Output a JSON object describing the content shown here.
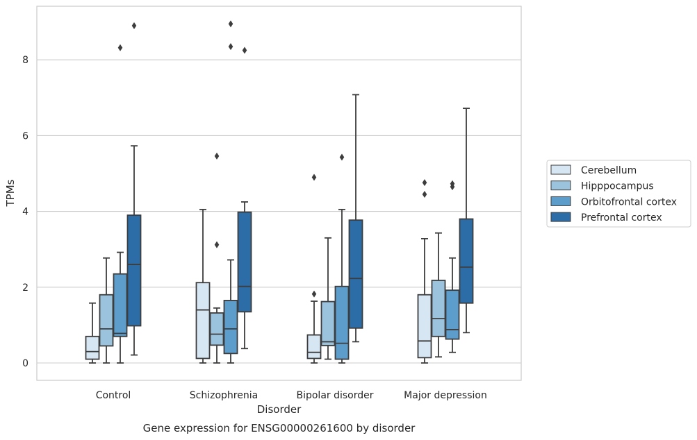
{
  "chart_data": {
    "type": "box",
    "caption": "Gene expression for ENSG00000261600 by disorder",
    "xlabel": "Disorder",
    "ylabel": "TPMs",
    "ylim": [
      -0.45,
      9.65
    ],
    "yticks": [
      0,
      2,
      4,
      6,
      8
    ],
    "grid": "horizontal",
    "legend_position": "outside-right",
    "categories": [
      "Control",
      "Schizophrenia",
      "Bipolar disorder",
      "Major depression"
    ],
    "series": [
      {
        "name": "Cerebellum",
        "color": "#d7e6f3",
        "boxes": [
          {
            "whisker_low": 0.0,
            "q1": 0.1,
            "median": 0.3,
            "q3": 0.7,
            "whisker_high": 1.58,
            "outliers": []
          },
          {
            "whisker_low": 0.0,
            "q1": 0.12,
            "median": 1.4,
            "q3": 2.12,
            "whisker_high": 4.05,
            "outliers": []
          },
          {
            "whisker_low": 0.0,
            "q1": 0.12,
            "median": 0.28,
            "q3": 0.74,
            "whisker_high": 1.63,
            "outliers": [
              1.82,
              4.9
            ]
          },
          {
            "whisker_low": 0.0,
            "q1": 0.14,
            "median": 0.58,
            "q3": 1.8,
            "whisker_high": 3.28,
            "outliers": [
              4.45,
              4.76
            ]
          }
        ]
      },
      {
        "name": "Hipppocampus",
        "color": "#9cc3dd",
        "boxes": [
          {
            "whisker_low": 0.0,
            "q1": 0.45,
            "median": 0.9,
            "q3": 1.8,
            "whisker_high": 2.77,
            "outliers": []
          },
          {
            "whisker_low": 0.0,
            "q1": 0.47,
            "median": 0.76,
            "q3": 1.32,
            "whisker_high": 1.45,
            "outliers": [
              3.12,
              5.46
            ]
          },
          {
            "whisker_low": 0.1,
            "q1": 0.46,
            "median": 0.56,
            "q3": 1.62,
            "whisker_high": 3.3,
            "outliers": []
          },
          {
            "whisker_low": 0.16,
            "q1": 0.7,
            "median": 1.17,
            "q3": 2.18,
            "whisker_high": 3.43,
            "outliers": []
          }
        ]
      },
      {
        "name": "Orbitofrontal cortex",
        "color": "#5c9dcb",
        "boxes": [
          {
            "whisker_low": 0.0,
            "q1": 0.7,
            "median": 0.78,
            "q3": 2.35,
            "whisker_high": 2.92,
            "outliers": [
              8.32
            ]
          },
          {
            "whisker_low": 0.0,
            "q1": 0.25,
            "median": 0.9,
            "q3": 1.65,
            "whisker_high": 2.72,
            "outliers": [
              8.35,
              8.95
            ]
          },
          {
            "whisker_low": 0.0,
            "q1": 0.1,
            "median": 0.52,
            "q3": 2.02,
            "whisker_high": 4.05,
            "outliers": [
              5.43
            ]
          },
          {
            "whisker_low": 0.28,
            "q1": 0.63,
            "median": 0.88,
            "q3": 1.92,
            "whisker_high": 2.77,
            "outliers": [
              4.65,
              4.73
            ]
          }
        ]
      },
      {
        "name": "Prefrontal cortex",
        "color": "#2c6da8",
        "boxes": [
          {
            "whisker_low": 0.21,
            "q1": 0.98,
            "median": 2.6,
            "q3": 3.9,
            "whisker_high": 5.73,
            "outliers": [
              8.9
            ]
          },
          {
            "whisker_low": 0.38,
            "q1": 1.35,
            "median": 2.02,
            "q3": 3.98,
            "whisker_high": 4.25,
            "outliers": [
              8.25
            ]
          },
          {
            "whisker_low": 0.56,
            "q1": 0.92,
            "median": 2.23,
            "q3": 3.77,
            "whisker_high": 7.08,
            "outliers": []
          },
          {
            "whisker_low": 0.8,
            "q1": 1.58,
            "median": 2.53,
            "q3": 3.8,
            "whisker_high": 6.72,
            "outliers": []
          }
        ]
      }
    ]
  }
}
